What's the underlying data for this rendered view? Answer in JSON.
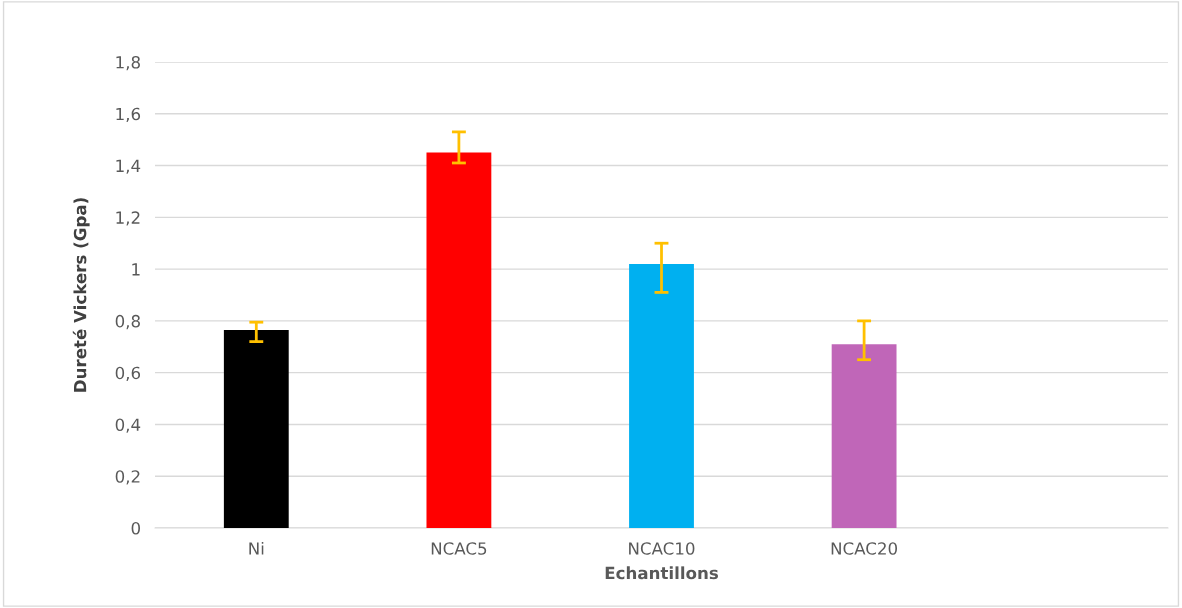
{
  "chart_data": {
    "type": "bar",
    "xlabel": "Echantillons",
    "ylabel": "Dureté Vickers (Gpa)",
    "categories": [
      "Ni",
      "NCAC5",
      "NCAC10",
      "NCAC20",
      null
    ],
    "values": [
      0.765,
      1.45,
      1.02,
      0.71,
      null
    ],
    "colors": [
      "#000000",
      "#ff0000",
      "#00b0f0",
      "#c066b8",
      "#000000"
    ],
    "errors": [
      [
        0.72,
        0.795
      ],
      [
        1.41,
        1.53
      ],
      [
        0.91,
        1.1
      ],
      [
        0.65,
        0.8
      ],
      null
    ],
    "ylim": [
      0,
      1.8
    ],
    "yticks": [
      0,
      {
        "value": 0.2,
        "label": "0,2"
      },
      {
        "value": 0.4,
        "label": "0,4"
      },
      {
        "value": 0.6,
        "label": "0,6"
      },
      {
        "value": 0.8,
        "label": "0,8"
      },
      1,
      {
        "value": 1.2,
        "label": "1,2"
      },
      {
        "value": 1.4,
        "label": "1,4"
      },
      {
        "value": 1.6,
        "label": "1,6"
      },
      {
        "value": 1.8,
        "label": "1,8"
      }
    ],
    "grid": "y"
  }
}
